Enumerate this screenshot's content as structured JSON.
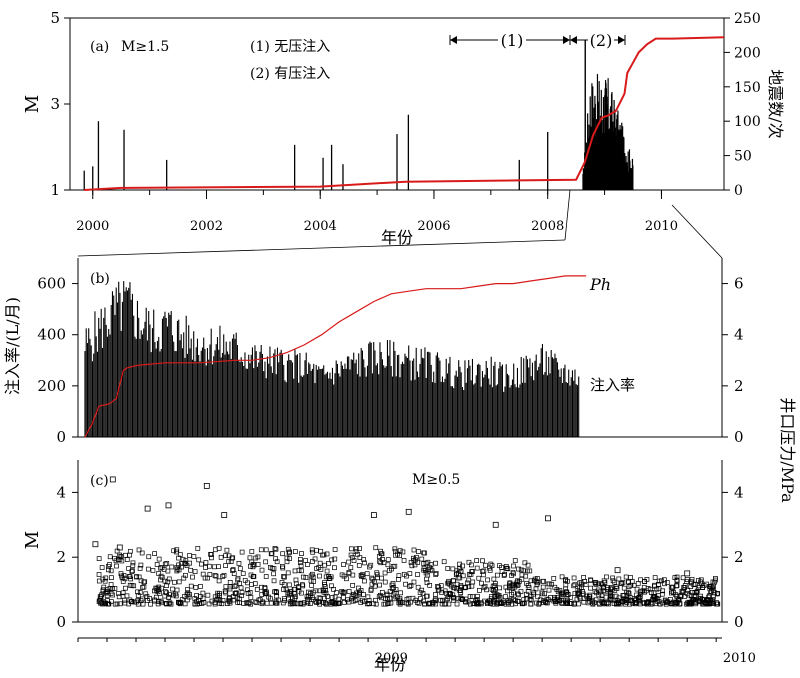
{
  "chart_data": [
    {
      "panel": "a",
      "type": "line",
      "panel_label": "(a)",
      "magnitude_filter": "M≥1.5",
      "legend_lines": [
        "(1) 无压注入",
        "(2) 有压注入"
      ],
      "phase_labels": [
        "(1)",
        "(2)"
      ],
      "xlabel": "年份",
      "ylabel_left": "M",
      "ylabel_right": "地震数/次",
      "xlim": [
        1999.6,
        2011.1
      ],
      "ylim_left": [
        1,
        5
      ],
      "ylim_right": [
        0,
        250
      ],
      "x_ticks": [
        "2000",
        "2002",
        "2004",
        "2006",
        "2008",
        "2010"
      ],
      "y_ticks_left": [
        "1",
        "3",
        "5"
      ],
      "y_ticks_right": [
        "0",
        "50",
        "100",
        "150",
        "200",
        "250"
      ],
      "phase_spans": [
        [
          2006.6,
          2008.6
        ],
        [
          2008.6,
          2009.2
        ]
      ],
      "series": [
        {
          "type": "stem",
          "axis": "left",
          "color": "#000000",
          "x": [
            1999.85,
            2000.0,
            2000.1,
            2000.55,
            2001.3,
            2003.55,
            2004.05,
            2004.2,
            2004.4,
            2005.35,
            2005.55,
            2007.5,
            2008.0
          ],
          "y": [
            1.45,
            1.55,
            2.6,
            2.4,
            1.7,
            2.05,
            1.75,
            2.05,
            1.6,
            2.3,
            2.75,
            1.7,
            2.35
          ]
        },
        {
          "type": "line",
          "axis": "right",
          "color": "#d91a1a",
          "x": [
            1999.85,
            2000.5,
            2004.0,
            2005.5,
            2008.5,
            2008.65,
            2008.8,
            2008.95,
            2009.05,
            2009.2,
            2009.35,
            2009.4,
            2009.5,
            2009.6,
            2009.75,
            2009.9,
            2010.2,
            2011.1
          ],
          "y": [
            0,
            3,
            5,
            12,
            15,
            40,
            80,
            105,
            108,
            115,
            140,
            170,
            185,
            200,
            212,
            220,
            220,
            222
          ]
        }
      ]
    },
    {
      "panel": "b",
      "type": "bar",
      "panel_label": "(b)",
      "ylabel_left": "注入率/(L/月)",
      "ylabel_right": "井口压力/MPa",
      "label_pressure": "Ph",
      "label_rate": "注入率",
      "xlim": [
        2008.6,
        2010.45
      ],
      "ylim_left": [
        0,
        700
      ],
      "ylim_right": [
        0,
        7
      ],
      "y_ticks_left": [
        "0",
        "200",
        "400",
        "600"
      ],
      "y_ticks_right": [
        "0",
        "2",
        "4",
        "6"
      ],
      "series": [
        {
          "name": "注入率",
          "type": "bar",
          "axis": "left",
          "color": "#000000",
          "x": [
            2008.62,
            2008.66,
            2008.7,
            2008.74,
            2008.78,
            2008.82,
            2008.86,
            2008.9,
            2008.94,
            2008.98,
            2009.02,
            2009.06,
            2009.1,
            2009.14,
            2009.18,
            2009.22,
            2009.26,
            2009.3,
            2009.34,
            2009.38,
            2009.42,
            2009.46,
            2009.5,
            2009.54,
            2009.58,
            2009.62,
            2009.66,
            2009.7,
            2009.74,
            2009.78,
            2009.82,
            2009.86,
            2009.9,
            2009.94,
            2009.98,
            2010.02,
            2010.06
          ],
          "y": [
            380,
            450,
            520,
            560,
            480,
            440,
            470,
            420,
            400,
            390,
            380,
            370,
            330,
            320,
            310,
            300,
            290,
            250,
            280,
            300,
            320,
            340,
            330,
            320,
            310,
            300,
            280,
            260,
            270,
            280,
            250,
            260,
            300,
            320,
            280,
            260,
            240
          ]
        },
        {
          "name": "Ph",
          "type": "line",
          "axis": "right",
          "color": "#d91a1a",
          "x": [
            2008.62,
            2008.64,
            2008.66,
            2008.69,
            2008.71,
            2008.73,
            2008.74,
            2008.77,
            2008.85,
            2008.95,
            2009.05,
            2009.1,
            2009.15,
            2009.2,
            2009.25,
            2009.3,
            2009.35,
            2009.4,
            2009.45,
            2009.5,
            2009.55,
            2009.6,
            2009.65,
            2009.7,
            2009.75,
            2009.8,
            2009.85,
            2009.9,
            2009.95,
            2010.0,
            2010.06
          ],
          "y": [
            0,
            0.5,
            1.2,
            1.3,
            1.5,
            2.6,
            2.7,
            2.8,
            2.9,
            2.9,
            3.0,
            3.0,
            3.1,
            3.3,
            3.6,
            4.0,
            4.5,
            4.9,
            5.3,
            5.6,
            5.7,
            5.8,
            5.8,
            5.8,
            5.9,
            6.0,
            6.0,
            6.1,
            6.2,
            6.3,
            6.3
          ]
        }
      ]
    },
    {
      "panel": "c",
      "type": "scatter",
      "panel_label": "(c)",
      "magnitude_filter": "M≥0.5",
      "xlabel": "年份",
      "ylabel": "M",
      "xlim": [
        2008.6,
        2010.45
      ],
      "ylim": [
        0,
        5
      ],
      "x_ticks": [
        "2009",
        "2010"
      ],
      "y_ticks_left": [
        "0",
        "2",
        "4"
      ],
      "y_ticks_right": [
        "0",
        "2",
        "4"
      ],
      "series": [
        {
          "type": "scatter",
          "color": "#000000",
          "x": [
            2008.65,
            2008.7,
            2008.72,
            2008.8,
            2008.86,
            2008.97,
            2009.02,
            2009.45,
            2009.55,
            2009.8,
            2009.95,
            2010.15,
            2010.35
          ],
          "y": [
            2.4,
            4.4,
            2.3,
            3.5,
            3.6,
            4.2,
            3.3,
            3.3,
            3.4,
            3.0,
            3.2,
            1.6,
            1.5
          ]
        }
      ]
    }
  ]
}
